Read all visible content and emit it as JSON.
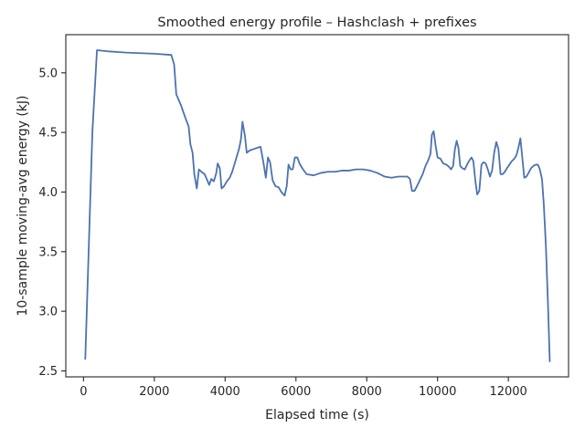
{
  "chart_data": {
    "type": "line",
    "title": "Smoothed energy profile – Hashclash + prefixes",
    "xlabel": "Elapsed time (s)",
    "ylabel": "10-sample moving-avg energy (kJ)",
    "xlim": [
      -500,
      13700
    ],
    "ylim": [
      2.45,
      5.32
    ],
    "xticks": [
      0,
      2000,
      4000,
      6000,
      8000,
      10000,
      12000
    ],
    "yticks": [
      2.5,
      3.0,
      3.5,
      4.0,
      4.5,
      5.0
    ],
    "ytick_labels": [
      "2.5",
      "3.0",
      "3.5",
      "4.0",
      "4.5",
      "5.0"
    ],
    "grid": false,
    "legend": "none",
    "series": [
      {
        "color": "#4c72b0",
        "points": [
          [
            50,
            2.6
          ],
          [
            250,
            4.5
          ],
          [
            380,
            5.19
          ],
          [
            700,
            5.18
          ],
          [
            1200,
            5.17
          ],
          [
            2000,
            5.16
          ],
          [
            2480,
            5.15
          ],
          [
            2560,
            5.07
          ],
          [
            2620,
            4.82
          ],
          [
            2750,
            4.73
          ],
          [
            2880,
            4.62
          ],
          [
            2970,
            4.55
          ],
          [
            3020,
            4.4
          ],
          [
            3080,
            4.33
          ],
          [
            3130,
            4.15
          ],
          [
            3200,
            4.03
          ],
          [
            3260,
            4.19
          ],
          [
            3330,
            4.17
          ],
          [
            3420,
            4.15
          ],
          [
            3480,
            4.11
          ],
          [
            3550,
            4.06
          ],
          [
            3610,
            4.11
          ],
          [
            3680,
            4.09
          ],
          [
            3750,
            4.16
          ],
          [
            3790,
            4.24
          ],
          [
            3850,
            4.2
          ],
          [
            3900,
            4.03
          ],
          [
            3970,
            4.05
          ],
          [
            4050,
            4.09
          ],
          [
            4130,
            4.12
          ],
          [
            4200,
            4.17
          ],
          [
            4300,
            4.27
          ],
          [
            4400,
            4.37
          ],
          [
            4450,
            4.45
          ],
          [
            4490,
            4.59
          ],
          [
            4560,
            4.47
          ],
          [
            4610,
            4.33
          ],
          [
            4700,
            4.35
          ],
          [
            4800,
            4.36
          ],
          [
            4900,
            4.37
          ],
          [
            5000,
            4.38
          ],
          [
            5080,
            4.25
          ],
          [
            5150,
            4.12
          ],
          [
            5210,
            4.29
          ],
          [
            5270,
            4.25
          ],
          [
            5340,
            4.1
          ],
          [
            5420,
            4.05
          ],
          [
            5510,
            4.04
          ],
          [
            5590,
            4.0
          ],
          [
            5680,
            3.97
          ],
          [
            5740,
            4.05
          ],
          [
            5790,
            4.23
          ],
          [
            5850,
            4.19
          ],
          [
            5910,
            4.19
          ],
          [
            5970,
            4.29
          ],
          [
            6040,
            4.29
          ],
          [
            6100,
            4.24
          ],
          [
            6200,
            4.19
          ],
          [
            6300,
            4.15
          ],
          [
            6500,
            4.14
          ],
          [
            6700,
            4.16
          ],
          [
            6900,
            4.17
          ],
          [
            7100,
            4.17
          ],
          [
            7300,
            4.18
          ],
          [
            7500,
            4.18
          ],
          [
            7700,
            4.19
          ],
          [
            7900,
            4.19
          ],
          [
            8100,
            4.18
          ],
          [
            8300,
            4.16
          ],
          [
            8500,
            4.13
          ],
          [
            8700,
            4.12
          ],
          [
            8900,
            4.13
          ],
          [
            9050,
            4.13
          ],
          [
            9150,
            4.13
          ],
          [
            9220,
            4.11
          ],
          [
            9280,
            4.01
          ],
          [
            9350,
            4.01
          ],
          [
            9420,
            4.05
          ],
          [
            9500,
            4.1
          ],
          [
            9580,
            4.15
          ],
          [
            9660,
            4.22
          ],
          [
            9740,
            4.27
          ],
          [
            9800,
            4.32
          ],
          [
            9840,
            4.48
          ],
          [
            9890,
            4.51
          ],
          [
            9950,
            4.38
          ],
          [
            10000,
            4.29
          ],
          [
            10080,
            4.28
          ],
          [
            10160,
            4.24
          ],
          [
            10250,
            4.23
          ],
          [
            10330,
            4.21
          ],
          [
            10380,
            4.19
          ],
          [
            10440,
            4.22
          ],
          [
            10490,
            4.36
          ],
          [
            10540,
            4.43
          ],
          [
            10590,
            4.37
          ],
          [
            10640,
            4.22
          ],
          [
            10700,
            4.2
          ],
          [
            10770,
            4.19
          ],
          [
            10850,
            4.24
          ],
          [
            10910,
            4.27
          ],
          [
            10960,
            4.29
          ],
          [
            11010,
            4.26
          ],
          [
            11070,
            4.09
          ],
          [
            11120,
            3.98
          ],
          [
            11180,
            4.01
          ],
          [
            11240,
            4.23
          ],
          [
            11300,
            4.25
          ],
          [
            11360,
            4.24
          ],
          [
            11420,
            4.19
          ],
          [
            11480,
            4.13
          ],
          [
            11540,
            4.18
          ],
          [
            11600,
            4.33
          ],
          [
            11660,
            4.42
          ],
          [
            11720,
            4.36
          ],
          [
            11780,
            4.15
          ],
          [
            11840,
            4.15
          ],
          [
            11900,
            4.17
          ],
          [
            11960,
            4.2
          ],
          [
            12030,
            4.23
          ],
          [
            12100,
            4.26
          ],
          [
            12170,
            4.28
          ],
          [
            12230,
            4.31
          ],
          [
            12290,
            4.38
          ],
          [
            12340,
            4.45
          ],
          [
            12390,
            4.3
          ],
          [
            12450,
            4.12
          ],
          [
            12510,
            4.13
          ],
          [
            12570,
            4.16
          ],
          [
            12640,
            4.2
          ],
          [
            12710,
            4.22
          ],
          [
            12780,
            4.23
          ],
          [
            12830,
            4.23
          ],
          [
            12880,
            4.2
          ],
          [
            12950,
            4.11
          ],
          [
            13000,
            3.9
          ],
          [
            13060,
            3.55
          ],
          [
            13120,
            3.05
          ],
          [
            13170,
            2.58
          ]
        ]
      }
    ]
  }
}
